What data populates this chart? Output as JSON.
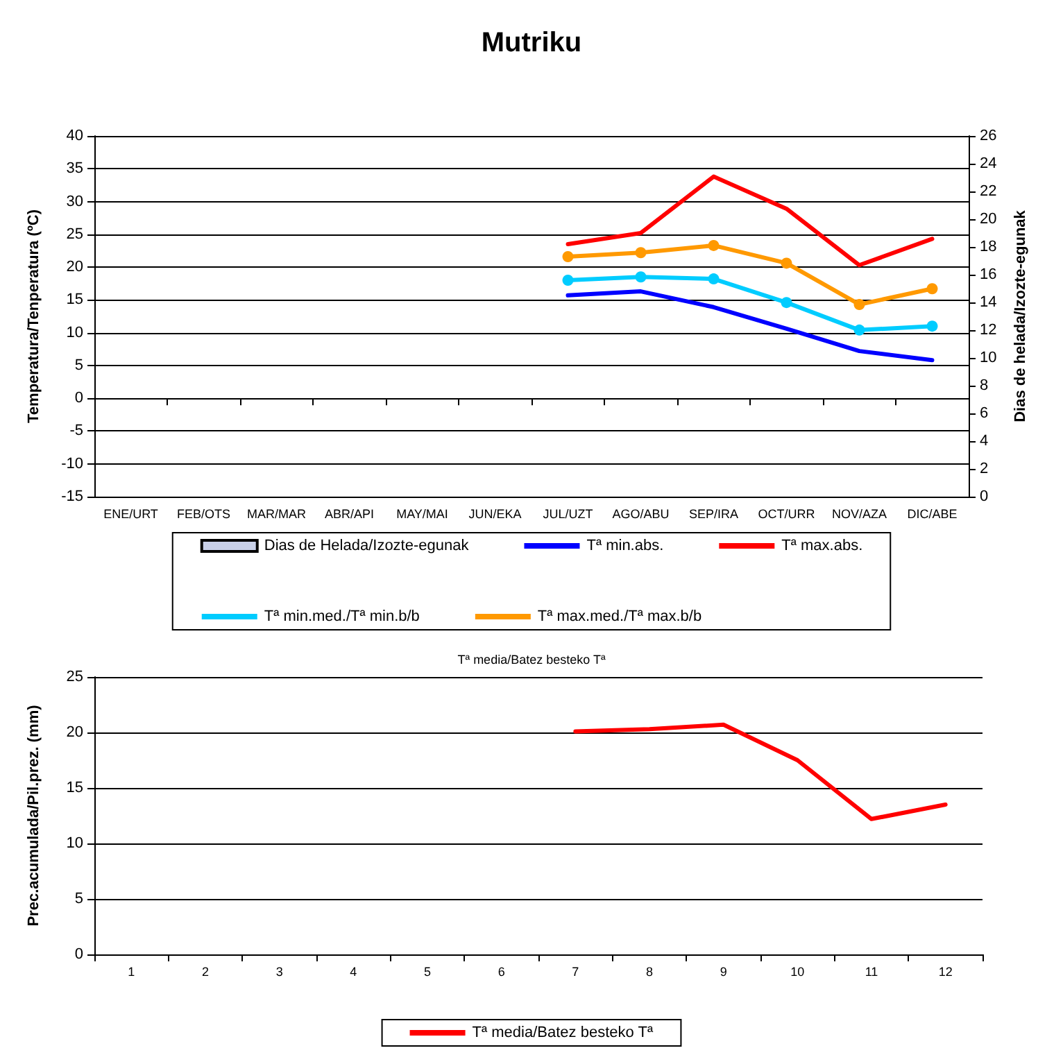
{
  "chart_data": [
    {
      "type": "line",
      "title": "Mutriku",
      "ylabel": "Temperatura/Tenperatura (ºC)",
      "y2label": "Dias de helada/Izozte-egunak",
      "categories": [
        "ENE/URT",
        "FEB/OTS",
        "MAR/MAR",
        "ABR/API",
        "MAY/MAI",
        "JUN/EKA",
        "JUL/UZT",
        "AGO/ABU",
        "SEP/IRA",
        "OCT/URR",
        "NOV/AZA",
        "DIC/ABE"
      ],
      "ylim": [
        -15,
        40
      ],
      "yticks": [
        -15,
        -10,
        -5,
        0,
        5,
        10,
        15,
        20,
        25,
        30,
        35,
        40
      ],
      "y2lim": [
        0,
        26
      ],
      "y2ticks": [
        0,
        2,
        4,
        6,
        8,
        10,
        12,
        14,
        16,
        18,
        20,
        22,
        24,
        26
      ],
      "grid": "y",
      "legend": "bottom",
      "series": [
        {
          "name": "Dias de Helada/Izozte-egunak",
          "type": "bar",
          "axis": "y2",
          "color": "#c8d0e8",
          "values": [
            null,
            null,
            null,
            null,
            null,
            null,
            null,
            null,
            null,
            null,
            null,
            null
          ]
        },
        {
          "name": "Tª min.abs.",
          "color": "#0000ff",
          "marker": "none",
          "values": [
            null,
            null,
            null,
            null,
            null,
            null,
            15.7,
            16.3,
            13.9,
            10.6,
            7.2,
            5.8
          ]
        },
        {
          "name": "Tª max.abs.",
          "color": "#ff0000",
          "marker": "none",
          "values": [
            null,
            null,
            null,
            null,
            null,
            null,
            23.5,
            25.2,
            33.8,
            28.9,
            20.3,
            24.3
          ]
        },
        {
          "name": "Tª min.med./Tª min.b/b",
          "color": "#00ccff",
          "marker": "circle",
          "values": [
            null,
            null,
            null,
            null,
            null,
            null,
            18.0,
            18.5,
            18.2,
            14.6,
            10.4,
            11.0
          ]
        },
        {
          "name": "Tª max.med./Tª max.b/b",
          "color": "#ff9900",
          "marker": "circle",
          "values": [
            null,
            null,
            null,
            null,
            null,
            null,
            21.6,
            22.2,
            23.3,
            20.6,
            14.3,
            16.7
          ]
        }
      ]
    },
    {
      "type": "line",
      "title": "Tª media/Batez besteko Tª",
      "ylabel": "Prec.acumulada/Pil.prez. (mm)",
      "categories": [
        "1",
        "2",
        "3",
        "4",
        "5",
        "6",
        "7",
        "8",
        "9",
        "10",
        "11",
        "12"
      ],
      "ylim": [
        0,
        25
      ],
      "yticks": [
        0,
        5,
        10,
        15,
        20,
        25
      ],
      "grid": "y",
      "legend": "bottom",
      "series": [
        {
          "name": "Tª media/Batez besteko Tª",
          "color": "#ff0000",
          "marker": "none",
          "values": [
            null,
            null,
            null,
            null,
            null,
            null,
            20.1,
            20.3,
            20.7,
            17.5,
            12.2,
            13.5
          ]
        }
      ]
    }
  ]
}
